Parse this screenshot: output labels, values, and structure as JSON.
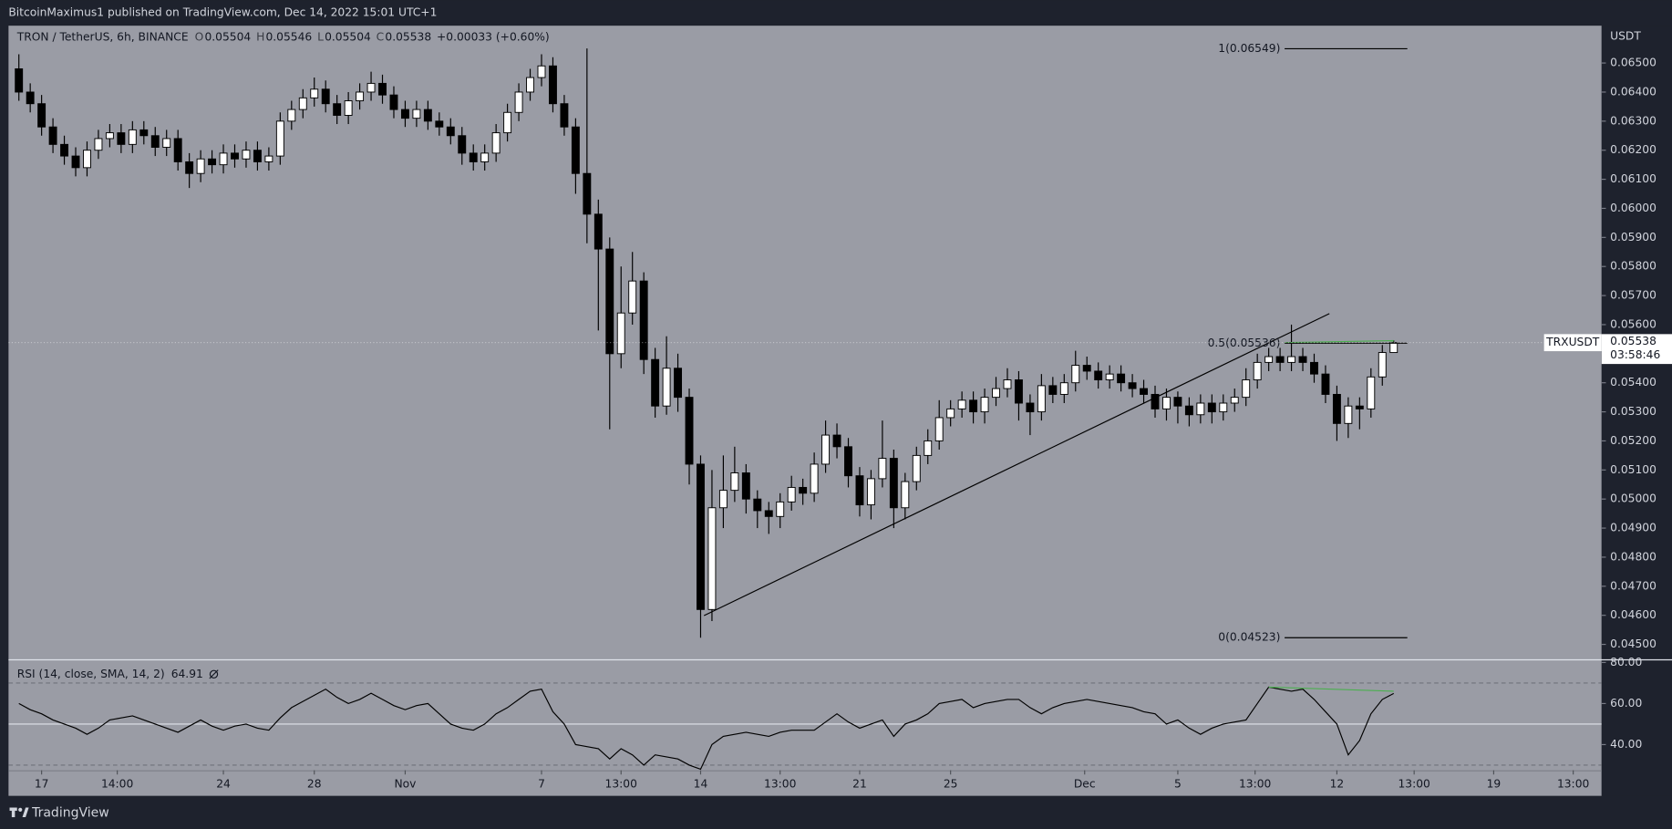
{
  "header": {
    "published": "BitcoinMaximus1 published on TradingView.com, Dec 14, 2022 15:01 UTC+1",
    "brand": "TradingView"
  },
  "chart_data": [
    {
      "type": "candlestick",
      "title": "TRON / TetherUS, 6h, BINANCE",
      "ohlc_keys": [
        "O",
        "H",
        "L",
        "C"
      ],
      "change": "+0.00033 (+0.60%)",
      "symbol": "TRXUSDT",
      "countdown": "03:58:46",
      "y_axis_label": "USDT",
      "up_color": "#ffffff",
      "down_color": "#000000",
      "grid": false,
      "x": [
        -1,
        -0.5,
        0,
        0.5,
        1,
        1.5,
        2,
        2.5,
        3,
        3.5,
        4,
        4.5,
        5,
        5.5,
        6,
        6.5,
        7,
        7.5,
        8,
        8.5,
        9,
        9.5,
        10,
        10.5,
        11,
        11.5,
        12,
        12.5,
        13,
        13.5,
        14,
        14.5,
        15,
        15.5,
        16,
        16.5,
        17,
        17.5,
        18,
        18.5,
        19,
        19.5,
        20,
        20.5,
        21,
        21.5,
        22,
        22.5,
        23,
        23.5,
        24,
        24.5,
        25,
        25.5,
        26,
        26.5,
        27,
        27.5,
        28,
        28.5,
        29,
        29.5,
        30,
        30.5,
        31,
        31.5,
        32,
        32.5,
        33,
        33.5,
        34,
        34.5,
        35,
        35.5,
        36,
        36.5,
        37,
        37.5,
        38,
        38.5,
        39,
        39.5,
        40,
        40.5,
        41,
        41.5,
        42,
        42.5,
        43,
        43.5,
        44,
        44.5,
        45,
        45.5,
        46,
        46.5,
        47,
        47.5,
        48,
        48.5,
        49,
        49.5,
        50,
        50.5,
        51,
        51.5,
        52,
        52.5,
        53,
        53.5,
        54,
        54.5,
        55,
        55.5,
        56,
        56.5,
        57,
        57.5,
        58,
        58.5,
        59,
        59.5
      ],
      "open": [
        0.0648,
        0.064,
        0.0636,
        0.0628,
        0.0622,
        0.0618,
        0.0614,
        0.062,
        0.0624,
        0.0626,
        0.0622,
        0.0627,
        0.0625,
        0.0621,
        0.0624,
        0.0616,
        0.0612,
        0.0617,
        0.0615,
        0.0619,
        0.0617,
        0.062,
        0.0616,
        0.0618,
        0.063,
        0.0634,
        0.0638,
        0.0641,
        0.0636,
        0.0632,
        0.0637,
        0.064,
        0.0643,
        0.0639,
        0.0634,
        0.0631,
        0.0634,
        0.063,
        0.0628,
        0.0625,
        0.0619,
        0.0616,
        0.0619,
        0.0626,
        0.0633,
        0.064,
        0.0645,
        0.0649,
        0.0636,
        0.0628,
        0.0612,
        0.0598,
        0.0586,
        0.055,
        0.0564,
        0.0575,
        0.0548,
        0.0532,
        0.0545,
        0.0535,
        0.0512,
        0.0462,
        0.0497,
        0.0503,
        0.0509,
        0.05,
        0.0496,
        0.0494,
        0.0499,
        0.0504,
        0.0502,
        0.0512,
        0.0522,
        0.0518,
        0.0508,
        0.0498,
        0.0507,
        0.0514,
        0.0497,
        0.0506,
        0.0515,
        0.052,
        0.0528,
        0.0531,
        0.0534,
        0.053,
        0.0535,
        0.0538,
        0.0541,
        0.0533,
        0.053,
        0.0539,
        0.0536,
        0.054,
        0.0546,
        0.0544,
        0.0541,
        0.0543,
        0.054,
        0.0538,
        0.0536,
        0.0531,
        0.0535,
        0.0532,
        0.0529,
        0.0533,
        0.053,
        0.0533,
        0.0535,
        0.0541,
        0.0547,
        0.0549,
        0.0547,
        0.0549,
        0.0547,
        0.0543,
        0.0536,
        0.0526,
        0.0532,
        0.0531,
        0.0542,
        0.05504
      ],
      "high": [
        0.0653,
        0.0643,
        0.0639,
        0.0631,
        0.0625,
        0.0621,
        0.0623,
        0.0627,
        0.0629,
        0.0629,
        0.063,
        0.063,
        0.0628,
        0.0627,
        0.0627,
        0.0619,
        0.062,
        0.062,
        0.0622,
        0.0622,
        0.0623,
        0.0623,
        0.0621,
        0.0633,
        0.0637,
        0.0641,
        0.0645,
        0.0644,
        0.0639,
        0.064,
        0.0643,
        0.0647,
        0.0646,
        0.0642,
        0.0637,
        0.0637,
        0.0637,
        0.0633,
        0.0631,
        0.0628,
        0.0622,
        0.0622,
        0.0629,
        0.0636,
        0.0643,
        0.0648,
        0.0653,
        0.0652,
        0.0639,
        0.0631,
        0.0655,
        0.0603,
        0.059,
        0.058,
        0.0585,
        0.0578,
        0.0552,
        0.0556,
        0.055,
        0.0538,
        0.0515,
        0.051,
        0.0515,
        0.0518,
        0.0512,
        0.0503,
        0.0499,
        0.0502,
        0.0508,
        0.0507,
        0.0516,
        0.0527,
        0.0526,
        0.0521,
        0.0511,
        0.051,
        0.0527,
        0.0517,
        0.0509,
        0.0518,
        0.0524,
        0.0534,
        0.0534,
        0.0537,
        0.0537,
        0.0538,
        0.0542,
        0.0545,
        0.0544,
        0.0536,
        0.0543,
        0.0542,
        0.0543,
        0.0551,
        0.0549,
        0.0547,
        0.0546,
        0.0546,
        0.0543,
        0.0541,
        0.0539,
        0.0538,
        0.0537,
        0.0535,
        0.0536,
        0.0536,
        0.0536,
        0.0538,
        0.0545,
        0.055,
        0.0552,
        0.0552,
        0.056,
        0.0552,
        0.055,
        0.0546,
        0.0539,
        0.0535,
        0.0535,
        0.0545,
        0.0553,
        0.05546
      ],
      "low": [
        0.0637,
        0.0633,
        0.0625,
        0.0619,
        0.0615,
        0.0611,
        0.0611,
        0.0617,
        0.0621,
        0.0619,
        0.0619,
        0.0622,
        0.0618,
        0.0618,
        0.0613,
        0.0607,
        0.0609,
        0.0612,
        0.0612,
        0.0614,
        0.0614,
        0.0613,
        0.0613,
        0.0615,
        0.0627,
        0.0631,
        0.0635,
        0.0633,
        0.0629,
        0.0629,
        0.0634,
        0.0637,
        0.0636,
        0.0631,
        0.0628,
        0.0628,
        0.0627,
        0.0625,
        0.0622,
        0.0615,
        0.0613,
        0.0613,
        0.0616,
        0.0623,
        0.063,
        0.0637,
        0.0642,
        0.0633,
        0.0625,
        0.0605,
        0.0588,
        0.0558,
        0.0524,
        0.0545,
        0.056,
        0.0543,
        0.0528,
        0.0529,
        0.053,
        0.0505,
        0.04523,
        0.0458,
        0.049,
        0.0499,
        0.0495,
        0.049,
        0.0488,
        0.049,
        0.0496,
        0.0498,
        0.0499,
        0.0509,
        0.0514,
        0.0504,
        0.0494,
        0.0493,
        0.0504,
        0.049,
        0.0493,
        0.0503,
        0.0512,
        0.0517,
        0.0525,
        0.0528,
        0.0526,
        0.0526,
        0.0532,
        0.0535,
        0.0527,
        0.0522,
        0.0527,
        0.0533,
        0.0533,
        0.0537,
        0.0541,
        0.0538,
        0.0538,
        0.0537,
        0.0535,
        0.0533,
        0.0528,
        0.0527,
        0.0526,
        0.0525,
        0.0526,
        0.0526,
        0.0527,
        0.053,
        0.0532,
        0.0538,
        0.0544,
        0.0544,
        0.0544,
        0.0544,
        0.054,
        0.0533,
        0.052,
        0.0521,
        0.0524,
        0.0528,
        0.0539,
        0.05504
      ],
      "close": [
        0.064,
        0.0636,
        0.0628,
        0.0622,
        0.0618,
        0.0614,
        0.062,
        0.0624,
        0.0626,
        0.0622,
        0.0627,
        0.0625,
        0.0621,
        0.0624,
        0.0616,
        0.0612,
        0.0617,
        0.0615,
        0.0619,
        0.0617,
        0.062,
        0.0616,
        0.0618,
        0.063,
        0.0634,
        0.0638,
        0.0641,
        0.0636,
        0.0632,
        0.0637,
        0.064,
        0.0643,
        0.0639,
        0.0634,
        0.0631,
        0.0634,
        0.063,
        0.0628,
        0.0625,
        0.0619,
        0.0616,
        0.0619,
        0.0626,
        0.0633,
        0.064,
        0.0645,
        0.0649,
        0.0636,
        0.0628,
        0.0612,
        0.0598,
        0.0586,
        0.055,
        0.0564,
        0.0575,
        0.0548,
        0.0532,
        0.0545,
        0.0535,
        0.0512,
        0.0462,
        0.0497,
        0.0503,
        0.0509,
        0.05,
        0.0496,
        0.0494,
        0.0499,
        0.0504,
        0.0502,
        0.0512,
        0.0522,
        0.0518,
        0.0508,
        0.0498,
        0.0507,
        0.0514,
        0.0497,
        0.0506,
        0.0515,
        0.052,
        0.0528,
        0.0531,
        0.0534,
        0.053,
        0.0535,
        0.0538,
        0.0541,
        0.0533,
        0.053,
        0.0539,
        0.0536,
        0.054,
        0.0546,
        0.0544,
        0.0541,
        0.0543,
        0.054,
        0.0538,
        0.0536,
        0.0531,
        0.0535,
        0.0532,
        0.0529,
        0.0533,
        0.053,
        0.0533,
        0.0535,
        0.0541,
        0.0547,
        0.0549,
        0.0547,
        0.0549,
        0.0547,
        0.0543,
        0.0536,
        0.0526,
        0.0532,
        0.0531,
        0.0542,
        0.05504,
        0.05538
      ],
      "xlim": [
        -1.455,
        68.65
      ],
      "ylim": [
        0.044523,
        0.066284
      ],
      "yticks": [
        {
          "value": 0.045,
          "label": "0.04500"
        },
        {
          "value": 0.046,
          "label": "0.04600"
        },
        {
          "value": 0.047,
          "label": "0.04700"
        },
        {
          "value": 0.048,
          "label": "0.04800"
        },
        {
          "value": 0.049,
          "label": "0.04900"
        },
        {
          "value": 0.05,
          "label": "0.05000"
        },
        {
          "value": 0.051,
          "label": "0.05100"
        },
        {
          "value": 0.052,
          "label": "0.05200"
        },
        {
          "value": 0.053,
          "label": "0.05300"
        },
        {
          "value": 0.054,
          "label": "0.05400"
        },
        {
          "value": 0.055,
          "label": "0.05500"
        },
        {
          "value": 0.056,
          "label": "0.05600"
        },
        {
          "value": 0.057,
          "label": "0.05700"
        },
        {
          "value": 0.058,
          "label": "0.05800"
        },
        {
          "value": 0.059,
          "label": "0.05900"
        },
        {
          "value": 0.06,
          "label": "0.06000"
        },
        {
          "value": 0.061,
          "label": "0.06100"
        },
        {
          "value": 0.062,
          "label": "0.06200"
        },
        {
          "value": 0.063,
          "label": "0.06300"
        },
        {
          "value": 0.064,
          "label": "0.06400"
        },
        {
          "value": 0.065,
          "label": "0.06500"
        }
      ],
      "xticks": [
        {
          "value": 0,
          "label": "17"
        },
        {
          "value": 3.33,
          "label": "14:00"
        },
        {
          "value": 8,
          "label": "24"
        },
        {
          "value": 12,
          "label": "28"
        },
        {
          "value": 16,
          "label": "Nov"
        },
        {
          "value": 22,
          "label": "7"
        },
        {
          "value": 25.5,
          "label": "13:00"
        },
        {
          "value": 29,
          "label": "14"
        },
        {
          "value": 32.5,
          "label": "13:00"
        },
        {
          "value": 36,
          "label": "21"
        },
        {
          "value": 40,
          "label": "25"
        },
        {
          "value": 45.9,
          "label": "Dec"
        },
        {
          "value": 50,
          "label": "5"
        },
        {
          "value": 53.4,
          "label": "13:00"
        },
        {
          "value": 57,
          "label": "12"
        },
        {
          "value": 60.4,
          "label": "13:00"
        },
        {
          "value": 63.9,
          "label": "19"
        },
        {
          "value": 67.4,
          "label": "13:00"
        }
      ],
      "fib_x": [
        54.7,
        60.1
      ],
      "fib_levels": [
        {
          "value": 0.06549,
          "label": "1(0.06549)"
        },
        {
          "value": 0.05536,
          "label": "0.5(0.05536)"
        },
        {
          "value": 0.04523,
          "label": "0(0.04523)"
        }
      ],
      "lines": [
        {
          "x": [
            29.15,
            56.67
          ],
          "y": [
            0.04599,
            0.05638
          ],
          "color": "#000000"
        },
        {
          "x": [
            54.7,
            59.5
          ],
          "y": [
            0.05538,
            0.05545
          ],
          "color": "#4caf50"
        }
      ]
    },
    {
      "type": "line",
      "title": "RSI (14, close, SMA, 14, 2)",
      "color": "#000000",
      "x": [
        -1,
        -0.5,
        0,
        0.5,
        1,
        1.5,
        2,
        2.5,
        3,
        3.5,
        4,
        4.5,
        5,
        5.5,
        6,
        6.5,
        7,
        7.5,
        8,
        8.5,
        9,
        9.5,
        10,
        10.5,
        11,
        11.5,
        12,
        12.5,
        13,
        13.5,
        14,
        14.5,
        15,
        15.5,
        16,
        16.5,
        17,
        17.5,
        18,
        18.5,
        19,
        19.5,
        20,
        20.5,
        21,
        21.5,
        22,
        22.5,
        23,
        23.5,
        24,
        24.5,
        25,
        25.5,
        26,
        26.5,
        27,
        27.5,
        28,
        28.5,
        29,
        29.5,
        30,
        30.5,
        31,
        31.5,
        32,
        32.5,
        33,
        33.5,
        34,
        34.5,
        35,
        35.5,
        36,
        36.5,
        37,
        37.5,
        38,
        38.5,
        39,
        39.5,
        40,
        40.5,
        41,
        41.5,
        42,
        42.5,
        43,
        43.5,
        44,
        44.5,
        45,
        45.5,
        46,
        46.5,
        47,
        47.5,
        48,
        48.5,
        49,
        49.5,
        50,
        50.5,
        51,
        51.5,
        52,
        52.5,
        53,
        53.5,
        54,
        54.5,
        55,
        55.5,
        56,
        56.5,
        57,
        57.5,
        58,
        58.5,
        59,
        59.5
      ],
      "values": [
        60,
        57,
        55,
        52,
        50,
        48,
        45,
        48,
        52,
        53,
        54,
        52,
        50,
        48,
        46,
        49,
        52,
        49,
        47,
        49,
        50,
        48,
        47,
        53,
        58,
        61,
        64,
        67,
        63,
        60,
        62,
        65,
        62,
        59,
        57,
        59,
        60,
        55,
        50,
        48,
        47,
        50,
        55,
        58,
        62,
        66,
        67,
        56,
        50,
        40,
        39,
        38,
        33,
        38,
        35,
        30,
        35,
        34,
        33,
        30,
        28,
        40,
        44,
        45,
        46,
        45,
        44,
        46,
        47,
        47,
        47,
        51,
        55,
        51,
        48,
        50,
        52,
        44,
        50,
        52,
        55,
        60,
        61,
        62,
        58,
        60,
        61,
        62,
        62,
        58,
        55,
        58,
        60,
        61,
        62,
        61,
        60,
        59,
        58,
        56,
        55,
        50,
        52,
        48,
        45,
        48,
        50,
        51,
        52,
        60,
        68,
        67,
        66,
        67,
        62,
        56,
        50,
        35,
        42,
        55,
        62,
        64.91
      ],
      "xlim": [
        -1.455,
        68.65
      ],
      "ylim": [
        27.5,
        80.5
      ],
      "yticks": [
        {
          "value": 40,
          "label": "40.00"
        },
        {
          "value": 60,
          "label": "60.00"
        },
        {
          "value": 80,
          "label": "80.00"
        }
      ],
      "bands": [
        70,
        50,
        30
      ],
      "lines": [
        {
          "x": [
            54,
            59.5
          ],
          "y": [
            68,
            66
          ],
          "color": "#4caf50"
        }
      ]
    }
  ]
}
